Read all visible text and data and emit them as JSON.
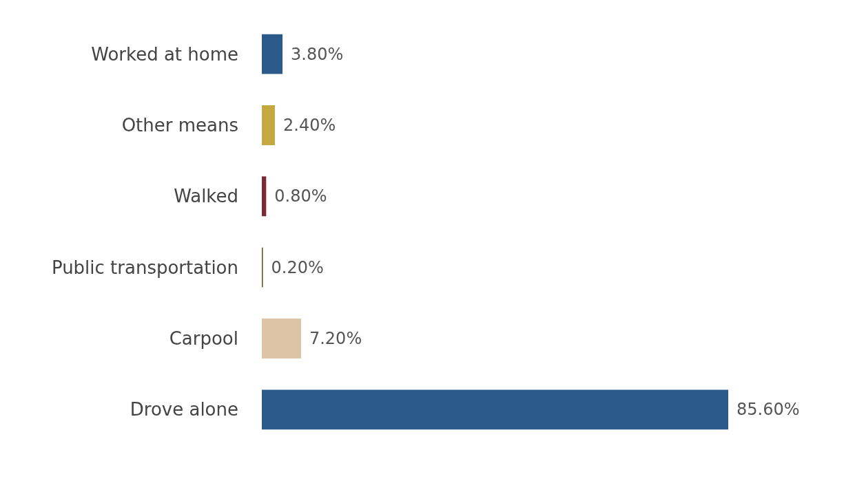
{
  "chart_data": {
    "type": "bar",
    "orientation": "horizontal",
    "categories": [
      "Worked at home",
      "Other means",
      "Walked",
      "Public transportation",
      "Carpool",
      "Drove alone"
    ],
    "values": [
      3.8,
      2.4,
      0.8,
      0.2,
      7.2,
      85.6
    ],
    "colors": [
      "#2b5a8a",
      "#c4a840",
      "#7a2a35",
      "#5e5524",
      "#dcc4a4",
      "#2b5a8a"
    ],
    "value_labels": [
      "3.80%",
      "2.40%",
      "0.80%",
      "0.20%",
      "7.20%",
      "85.60%"
    ],
    "tick_labels": "y"
  }
}
